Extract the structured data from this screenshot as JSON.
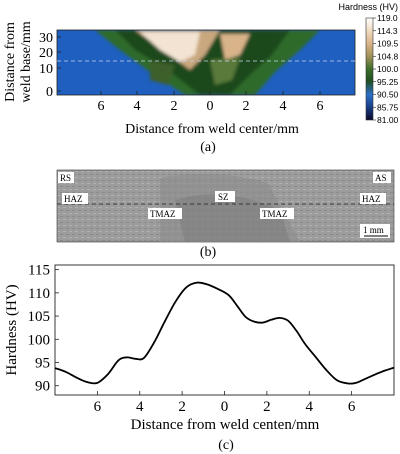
{
  "chart_data": [
    {
      "type": "heatmap",
      "xlabel": "Distance from weld center/mm",
      "ylabel_line1": "Distance from",
      "ylabel_line2": "weld base/mm",
      "x_ticks": [
        "6",
        "4",
        "2",
        "0",
        "2",
        "4",
        "6"
      ],
      "y_ticks": [
        "30",
        "20",
        "10",
        "0"
      ],
      "colorbar_title": "Hardness (HV)",
      "colorbar_ticks": [
        "119.0",
        "114.3",
        "109.5",
        "104.8",
        "100.0",
        "95.25",
        "90.50",
        "85.75",
        "81.00"
      ],
      "colors": {
        "blue": "#1e5fbf",
        "green": "#2f6b2a",
        "dark_green": "#1d4a1e",
        "tan": "#e8c9a6",
        "light": "#f3e3d2"
      },
      "caption": "(a)"
    },
    {
      "type": "image",
      "labels": {
        "rs": "RS",
        "as": "AS",
        "haz_left": "HAZ",
        "haz_right": "HAZ",
        "sz": "SZ",
        "tmaz_left": "TMAZ",
        "tmaz_right": "TMAZ",
        "scale": "1 mm"
      },
      "caption": "(b)"
    },
    {
      "type": "line",
      "xlabel": "Distance from weld centen/mm",
      "ylabel": "Hardness (HV)",
      "x_tick_labels": [
        "6",
        "4",
        "2",
        "0",
        "2",
        "4",
        "6"
      ],
      "x_tick_values": [
        -6,
        -4,
        -2,
        0,
        2,
        4,
        6
      ],
      "xlim": [
        -8,
        8
      ],
      "ylim": [
        88,
        116
      ],
      "yticks": [
        90,
        95,
        100,
        105,
        110,
        115
      ],
      "x": [
        -8,
        -7.5,
        -7,
        -6.5,
        -6,
        -5.5,
        -5,
        -4.6,
        -4.2,
        -3.8,
        -3.3,
        -2.8,
        -2.3,
        -1.8,
        -1.3,
        -0.8,
        -0.3,
        0.2,
        0.6,
        1.0,
        1.4,
        1.8,
        2.2,
        2.6,
        3.0,
        3.4,
        3.8,
        4.3,
        4.8,
        5.3,
        5.8,
        6.2,
        6.7,
        7.2,
        7.6,
        8
      ],
      "y": [
        93.8,
        93.0,
        91.8,
        90.8,
        90.6,
        92.5,
        95.5,
        96.1,
        95.8,
        96.0,
        99.5,
        104.0,
        108.2,
        111.2,
        112.2,
        111.8,
        110.8,
        109.5,
        107.2,
        104.8,
        103.8,
        103.6,
        104.2,
        104.6,
        104.0,
        101.8,
        99.0,
        96.2,
        93.4,
        91.2,
        90.5,
        90.6,
        91.6,
        92.6,
        93.3,
        93.9
      ],
      "color": "#000000",
      "caption": "(c)"
    }
  ]
}
